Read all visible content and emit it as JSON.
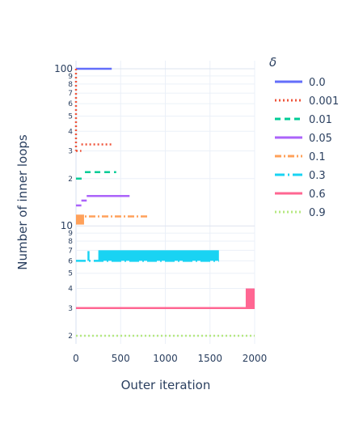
{
  "chart_data": {
    "type": "line",
    "xlabel": "Outer iteration",
    "ylabel": "Number of inner loops",
    "xlim": [
      0,
      2000
    ],
    "ylim": [
      1.8,
      110
    ],
    "y_scale": "log",
    "grid": true,
    "x_ticks": [
      0,
      500,
      1000,
      1500,
      2000
    ],
    "x_tick_labels": [
      "0",
      "500",
      "1000",
      "1500",
      "2000"
    ],
    "y_major_ticks": [
      10,
      100
    ],
    "y_major_labels": [
      "10",
      "100"
    ],
    "y_minor_ticks": [
      2,
      3,
      4,
      5,
      6,
      7,
      8,
      9,
      20,
      30,
      40,
      50,
      60,
      70,
      80,
      90
    ],
    "y_minor_labels": [
      "2",
      "3",
      "4",
      "5",
      "6",
      "7",
      "8",
      "9",
      "2",
      "3",
      "4",
      "5",
      "6",
      "7",
      "8",
      "9"
    ],
    "legend": {
      "title": "δ",
      "position": "right"
    },
    "series": [
      {
        "name": "0.0",
        "color": "#636efa",
        "dash": "solid",
        "segments": [
          {
            "x": [
              0,
              400
            ],
            "y": [
              100,
              100
            ]
          }
        ]
      },
      {
        "name": "0.001",
        "color": "#ef553b",
        "dash": "dot",
        "segments": [
          {
            "x": [
              0,
              0
            ],
            "y": [
              100,
              30
            ]
          },
          {
            "x": [
              0,
              60
            ],
            "y": [
              30,
              30
            ]
          },
          {
            "x": [
              60,
              400
            ],
            "y": [
              33,
              33
            ]
          }
        ]
      },
      {
        "name": "0.01",
        "color": "#00cc96",
        "dash": "dash",
        "segments": [
          {
            "x": [
              0,
              100
            ],
            "y": [
              20,
              20
            ]
          },
          {
            "x": [
              100,
              450
            ],
            "y": [
              22,
              22
            ]
          }
        ]
      },
      {
        "name": "0.05",
        "color": "#ab63fa",
        "dash": "solid",
        "segments": [
          {
            "x": [
              0,
              60
            ],
            "y": [
              13.5,
              13.5
            ]
          },
          {
            "x": [
              60,
              120
            ],
            "y": [
              14.5,
              14.5
            ]
          },
          {
            "x": [
              120,
              600
            ],
            "y": [
              15.5,
              15.5
            ]
          }
        ]
      },
      {
        "name": "0.1",
        "color": "#ffa15a",
        "dash": "dashdot",
        "segments": [
          {
            "x": [
              0,
              800
            ],
            "y": [
              11.5,
              11.5
            ]
          }
        ],
        "bands": [
          {
            "x": [
              0,
              90
            ],
            "y": [
              10.2,
              11.8
            ]
          }
        ]
      },
      {
        "name": "0.3",
        "color": "#19d3f3",
        "dash": "longdashdot",
        "segments": [
          {
            "x": [
              0,
              1600
            ],
            "y": [
              6,
              6
            ]
          },
          {
            "x": [
              140,
              140
            ],
            "y": [
              6,
              7
            ]
          }
        ],
        "bands": [
          {
            "x": [
              250,
              1600
            ],
            "y": [
              6,
              7
            ]
          }
        ]
      },
      {
        "name": "0.6",
        "color": "#ff6692",
        "dash": "solid",
        "segments": [
          {
            "x": [
              0,
              2000
            ],
            "y": [
              3,
              3
            ]
          }
        ],
        "bands": [
          {
            "x": [
              1900,
              2000
            ],
            "y": [
              3,
              4
            ]
          }
        ]
      },
      {
        "name": "0.9",
        "color": "#b6e880",
        "dash": "dot",
        "segments": [
          {
            "x": [
              0,
              2000
            ],
            "y": [
              2,
              2
            ]
          }
        ]
      }
    ]
  }
}
